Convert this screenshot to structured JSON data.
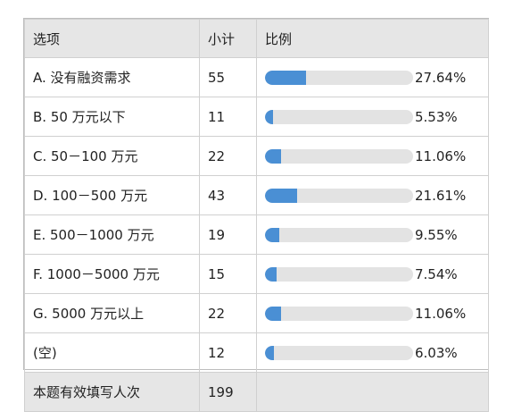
{
  "table": {
    "headers": {
      "option": "选项",
      "count": "小计",
      "ratio": "比例"
    },
    "rows": [
      {
        "option": "A. 没有融资需求",
        "count": "55",
        "ratio": "27.64%"
      },
      {
        "option": "B. 50 万元以下",
        "count": "11",
        "ratio": "5.53%"
      },
      {
        "option": "C. 50－100 万元",
        "count": "22",
        "ratio": "11.06%"
      },
      {
        "option": "D. 100－500 万元",
        "count": "43",
        "ratio": "21.61%"
      },
      {
        "option": "E. 500－1000 万元",
        "count": "19",
        "ratio": "9.55%"
      },
      {
        "option": "F. 1000－5000 万元",
        "count": "15",
        "ratio": "7.54%"
      },
      {
        "option": "G. 5000 万元以上",
        "count": "22",
        "ratio": "11.06%"
      },
      {
        "option": "(空)",
        "count": "12",
        "ratio": "6.03%"
      }
    ],
    "footer": {
      "label": "本题有效填写人次",
      "count": "199"
    }
  },
  "chart_data": {
    "type": "bar",
    "categories": [
      "A. 没有融资需求",
      "B. 50 万元以下",
      "C. 50－100 万元",
      "D. 100－500 万元",
      "E. 500－1000 万元",
      "F. 1000－5000 万元",
      "G. 5000 万元以上",
      "(空)"
    ],
    "values": [
      27.64,
      5.53,
      11.06,
      21.61,
      9.55,
      7.54,
      11.06,
      6.03
    ],
    "counts": [
      55,
      11,
      22,
      43,
      19,
      15,
      22,
      12
    ],
    "total": 199,
    "ylim": [
      0,
      100
    ],
    "colors": {
      "bar_fill": "#4a8fd4",
      "bar_track": "#e3e3e3",
      "header_bg": "#e6e6e6"
    }
  }
}
